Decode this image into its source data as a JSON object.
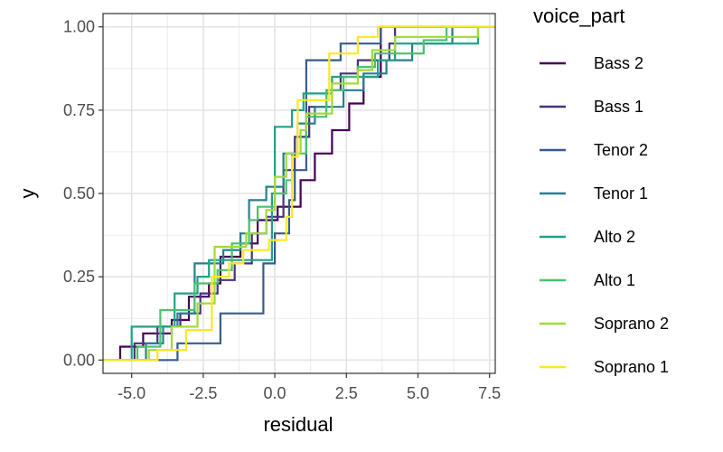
{
  "chart_data": {
    "type": "line",
    "subtype": "ecdf-step",
    "xlabel": "residual",
    "ylabel": "y",
    "xlim": [
      -6.0,
      7.7
    ],
    "ylim": [
      -0.04,
      1.04
    ],
    "x_ticks": [
      -5.0,
      -2.5,
      0.0,
      2.5,
      5.0,
      7.5
    ],
    "x_tick_labels": [
      "-5.0",
      "-2.5",
      "0.0",
      "2.5",
      "5.0",
      "7.5"
    ],
    "y_ticks": [
      0.0,
      0.25,
      0.5,
      0.75,
      1.0
    ],
    "y_tick_labels": [
      "0.00",
      "0.25",
      "0.50",
      "0.75",
      "1.00"
    ],
    "grid": true,
    "legend_title": "voice_part",
    "legend_position": "right",
    "series": [
      {
        "name": "Bass 2",
        "color": "#440154",
        "points": [
          [
            -6.0,
            0.0
          ],
          [
            -5.4,
            0.04
          ],
          [
            -4.6,
            0.08
          ],
          [
            -3.6,
            0.12
          ],
          [
            -3.0,
            0.19
          ],
          [
            -2.3,
            0.23
          ],
          [
            -1.9,
            0.31
          ],
          [
            -1.2,
            0.35
          ],
          [
            -0.6,
            0.42
          ],
          [
            0.1,
            0.46
          ],
          [
            0.9,
            0.54
          ],
          [
            1.4,
            0.62
          ],
          [
            2.0,
            0.69
          ],
          [
            2.6,
            0.77
          ],
          [
            3.1,
            0.85
          ],
          [
            3.7,
            1.0
          ],
          [
            7.7,
            1.0
          ]
        ]
      },
      {
        "name": "Bass 1",
        "color": "#46337E",
        "points": [
          [
            -6.0,
            0.0
          ],
          [
            -4.9,
            0.05
          ],
          [
            -4.1,
            0.1
          ],
          [
            -3.3,
            0.14
          ],
          [
            -2.6,
            0.2
          ],
          [
            -2.0,
            0.24
          ],
          [
            -1.4,
            0.29
          ],
          [
            -0.8,
            0.38
          ],
          [
            -0.3,
            0.43
          ],
          [
            0.3,
            0.57
          ],
          [
            0.7,
            0.67
          ],
          [
            1.2,
            0.76
          ],
          [
            1.8,
            0.81
          ],
          [
            2.3,
            0.86
          ],
          [
            2.9,
            0.9
          ],
          [
            4.0,
            0.95
          ],
          [
            4.2,
            1.0
          ],
          [
            7.7,
            1.0
          ]
        ]
      },
      {
        "name": "Tenor 2",
        "color": "#365C8D",
        "points": [
          [
            -6.0,
            0.0
          ],
          [
            -3.4,
            0.05
          ],
          [
            -1.9,
            0.14
          ],
          [
            -0.4,
            0.29
          ],
          [
            0.0,
            0.38
          ],
          [
            0.5,
            0.48
          ],
          [
            0.7,
            0.57
          ],
          [
            1.1,
            0.9
          ],
          [
            2.3,
            0.95
          ],
          [
            3.7,
            1.0
          ],
          [
            7.7,
            1.0
          ]
        ]
      },
      {
        "name": "Tenor 1",
        "color": "#277F8E",
        "points": [
          [
            -6.0,
            0.0
          ],
          [
            -4.5,
            0.05
          ],
          [
            -3.9,
            0.1
          ],
          [
            -3.4,
            0.14
          ],
          [
            -2.8,
            0.29
          ],
          [
            -1.8,
            0.33
          ],
          [
            -1.2,
            0.38
          ],
          [
            -0.9,
            0.48
          ],
          [
            -0.3,
            0.52
          ],
          [
            0.3,
            0.62
          ],
          [
            0.8,
            0.71
          ],
          [
            1.4,
            0.76
          ],
          [
            2.4,
            0.81
          ],
          [
            3.1,
            0.86
          ],
          [
            3.9,
            0.9
          ],
          [
            4.8,
            0.95
          ],
          [
            6.2,
            1.0
          ],
          [
            7.7,
            1.0
          ]
        ]
      },
      {
        "name": "Alto 2",
        "color": "#1FA187",
        "points": [
          [
            -6.0,
            0.0
          ],
          [
            -5.0,
            0.1
          ],
          [
            -3.5,
            0.2
          ],
          [
            -2.7,
            0.25
          ],
          [
            -2.3,
            0.3
          ],
          [
            -0.1,
            0.5
          ],
          [
            0.0,
            0.7
          ],
          [
            0.6,
            0.75
          ],
          [
            1.0,
            0.8
          ],
          [
            2.0,
            0.85
          ],
          [
            3.6,
            0.9
          ],
          [
            4.2,
            0.95
          ],
          [
            7.1,
            1.0
          ],
          [
            7.7,
            1.0
          ]
        ]
      },
      {
        "name": "Alto 1",
        "color": "#4AC16D",
        "points": [
          [
            -6.0,
            0.0
          ],
          [
            -4.8,
            0.04
          ],
          [
            -4.0,
            0.15
          ],
          [
            -2.8,
            0.23
          ],
          [
            -2.0,
            0.27
          ],
          [
            -1.5,
            0.35
          ],
          [
            -0.9,
            0.42
          ],
          [
            -0.6,
            0.46
          ],
          [
            0.0,
            0.5
          ],
          [
            0.4,
            0.54
          ],
          [
            0.6,
            0.62
          ],
          [
            1.1,
            0.73
          ],
          [
            1.8,
            0.81
          ],
          [
            2.4,
            0.85
          ],
          [
            2.9,
            0.88
          ],
          [
            3.5,
            0.92
          ],
          [
            5.2,
            0.96
          ],
          [
            6.0,
            1.0
          ],
          [
            7.7,
            1.0
          ]
        ]
      },
      {
        "name": "Soprano 2",
        "color": "#9FDA3A",
        "points": [
          [
            -6.0,
            0.0
          ],
          [
            -4.4,
            0.03
          ],
          [
            -3.6,
            0.1
          ],
          [
            -2.7,
            0.17
          ],
          [
            -2.1,
            0.34
          ],
          [
            -1.0,
            0.38
          ],
          [
            -0.3,
            0.45
          ],
          [
            0.0,
            0.55
          ],
          [
            0.4,
            0.62
          ],
          [
            0.9,
            0.69
          ],
          [
            1.1,
            0.74
          ],
          [
            2.0,
            0.83
          ],
          [
            2.9,
            0.87
          ],
          [
            3.4,
            0.93
          ],
          [
            4.2,
            0.97
          ],
          [
            7.1,
            1.0
          ],
          [
            7.7,
            1.0
          ]
        ]
      },
      {
        "name": "Soprano 1",
        "color": "#FDE725",
        "points": [
          [
            -6.0,
            0.0
          ],
          [
            -4.1,
            0.03
          ],
          [
            -3.1,
            0.09
          ],
          [
            -2.2,
            0.25
          ],
          [
            -1.6,
            0.29
          ],
          [
            -1.1,
            0.33
          ],
          [
            -0.2,
            0.36
          ],
          [
            0.4,
            0.43
          ],
          [
            0.6,
            0.61
          ],
          [
            0.8,
            0.78
          ],
          [
            1.9,
            0.92
          ],
          [
            2.9,
            0.97
          ],
          [
            3.6,
            1.0
          ],
          [
            7.7,
            1.0
          ]
        ]
      }
    ]
  }
}
